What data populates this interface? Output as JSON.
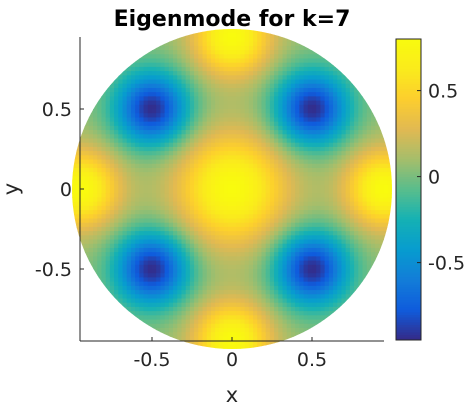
{
  "chart_data": {
    "type": "heatmap",
    "title": "Eigenmode for k=7",
    "xlabel": "x",
    "ylabel": "y",
    "xlim": [
      -0.95,
      0.95
    ],
    "ylim": [
      -0.95,
      0.95
    ],
    "x_ticks": [
      -0.5,
      0,
      0.5
    ],
    "x_tick_labels": [
      "-0.5",
      "0",
      "0.5"
    ],
    "y_ticks": [
      -0.5,
      0,
      0.5
    ],
    "y_tick_labels": [
      "-0.5",
      "0",
      "0.5"
    ],
    "domain": "unit disk",
    "colormap": "parula",
    "colorbar": {
      "location": "right",
      "range": [
        -0.95,
        0.8
      ],
      "ticks": [
        -0.5,
        0,
        0.5
      ],
      "tick_labels": [
        "-0.5",
        "0",
        "0.5"
      ]
    },
    "features": [
      {
        "label": "central maximum",
        "x": 0,
        "y": 0,
        "value": 0.8
      },
      {
        "label": "minimum",
        "x": -0.5,
        "y": 0.5,
        "value": -0.95
      },
      {
        "label": "minimum",
        "x": 0.5,
        "y": 0.5,
        "value": -0.95
      },
      {
        "label": "minimum",
        "x": -0.5,
        "y": -0.5,
        "value": -0.95
      },
      {
        "label": "minimum",
        "x": 0.5,
        "y": -0.5,
        "value": -0.95
      },
      {
        "label": "boundary maximum",
        "x": 0,
        "y": 0.95,
        "value": 0.8
      },
      {
        "label": "boundary maximum",
        "x": 0,
        "y": -0.95,
        "value": 0.8
      },
      {
        "label": "boundary maximum",
        "x": -0.95,
        "y": 0,
        "value": 0.8
      },
      {
        "label": "boundary maximum",
        "x": 0.95,
        "y": 0,
        "value": 0.8
      }
    ]
  }
}
